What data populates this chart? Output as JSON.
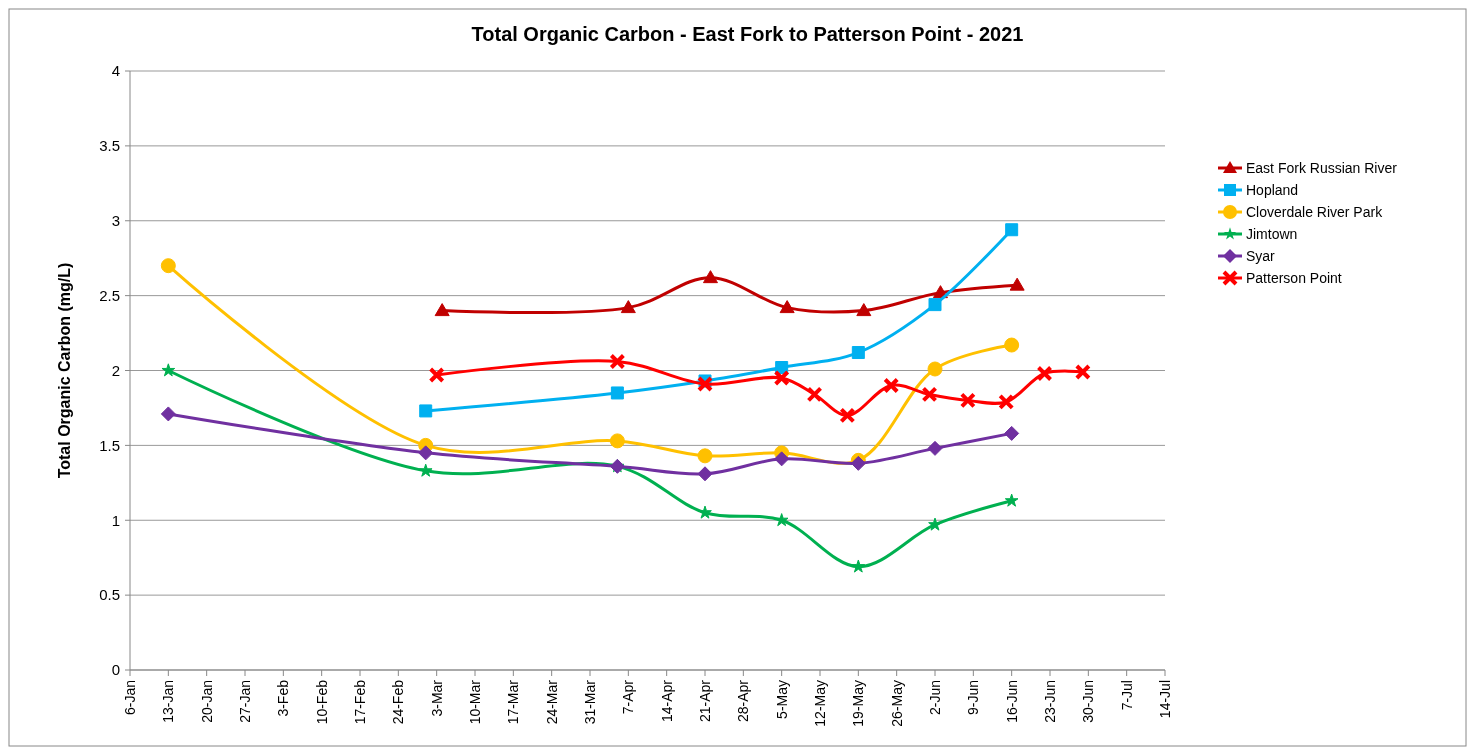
{
  "chart_data": {
    "type": "line",
    "title": "Total Organic Carbon - East Fork to Patterson Point - 2021",
    "ylabel": "Total Organic Carbon (mg/L)",
    "xlim": [
      "2021-01-06",
      "2021-07-14"
    ],
    "xticks": [
      {
        "value": "2021-01-06",
        "label": "6-Jan"
      },
      {
        "value": "2021-01-13",
        "label": "13-Jan"
      },
      {
        "value": "2021-01-20",
        "label": "20-Jan"
      },
      {
        "value": "2021-01-27",
        "label": "27-Jan"
      },
      {
        "value": "2021-02-03",
        "label": "3-Feb"
      },
      {
        "value": "2021-02-10",
        "label": "10-Feb"
      },
      {
        "value": "2021-02-17",
        "label": "17-Feb"
      },
      {
        "value": "2021-02-24",
        "label": "24-Feb"
      },
      {
        "value": "2021-03-03",
        "label": "3-Mar"
      },
      {
        "value": "2021-03-10",
        "label": "10-Mar"
      },
      {
        "value": "2021-03-17",
        "label": "17-Mar"
      },
      {
        "value": "2021-03-24",
        "label": "24-Mar"
      },
      {
        "value": "2021-03-31",
        "label": "31-Mar"
      },
      {
        "value": "2021-04-07",
        "label": "7-Apr"
      },
      {
        "value": "2021-04-14",
        "label": "14-Apr"
      },
      {
        "value": "2021-04-21",
        "label": "21-Apr"
      },
      {
        "value": "2021-04-28",
        "label": "28-Apr"
      },
      {
        "value": "2021-05-05",
        "label": "5-May"
      },
      {
        "value": "2021-05-12",
        "label": "12-May"
      },
      {
        "value": "2021-05-19",
        "label": "19-May"
      },
      {
        "value": "2021-05-26",
        "label": "26-May"
      },
      {
        "value": "2021-06-02",
        "label": "2-Jun"
      },
      {
        "value": "2021-06-09",
        "label": "9-Jun"
      },
      {
        "value": "2021-06-16",
        "label": "16-Jun"
      },
      {
        "value": "2021-06-23",
        "label": "23-Jun"
      },
      {
        "value": "2021-06-30",
        "label": "30-Jun"
      },
      {
        "value": "2021-07-07",
        "label": "7-Jul"
      },
      {
        "value": "2021-07-14",
        "label": "14-Jul"
      }
    ],
    "ylim": [
      0,
      4
    ],
    "yticks": [
      0,
      0.5,
      1,
      1.5,
      2,
      2.5,
      3,
      3.5,
      4
    ],
    "grid": "y",
    "legend": "right",
    "series": [
      {
        "name": "East Fork Russian River",
        "color": "#c00000",
        "marker": "triangle",
        "x": [
          "2021-03-04",
          "2021-04-07",
          "2021-04-22",
          "2021-05-06",
          "2021-05-20",
          "2021-06-03",
          "2021-06-17"
        ],
        "values": [
          2.4,
          2.42,
          2.62,
          2.42,
          2.4,
          2.52,
          2.57
        ]
      },
      {
        "name": "Hopland",
        "color": "#00b0f0",
        "marker": "square",
        "x": [
          "2021-03-01",
          "2021-04-05",
          "2021-04-21",
          "2021-05-05",
          "2021-05-19",
          "2021-06-02",
          "2021-06-16"
        ],
        "values": [
          1.73,
          1.85,
          1.93,
          2.02,
          2.12,
          2.44,
          2.94
        ]
      },
      {
        "name": "Cloverdale River Park",
        "color": "#ffc000",
        "marker": "circle",
        "x": [
          "2021-01-13",
          "2021-03-01",
          "2021-04-05",
          "2021-04-21",
          "2021-05-05",
          "2021-05-19",
          "2021-06-02",
          "2021-06-16"
        ],
        "values": [
          2.7,
          1.5,
          1.53,
          1.43,
          1.45,
          1.4,
          2.01,
          2.17
        ]
      },
      {
        "name": "Jimtown",
        "color": "#00b050",
        "marker": "star",
        "x": [
          "2021-01-13",
          "2021-03-01",
          "2021-04-05",
          "2021-04-21",
          "2021-05-05",
          "2021-05-19",
          "2021-06-02",
          "2021-06-16"
        ],
        "values": [
          2.0,
          1.33,
          1.36,
          1.05,
          1.0,
          0.69,
          0.97,
          1.13
        ]
      },
      {
        "name": "Syar",
        "color": "#7030a0",
        "marker": "diamond",
        "x": [
          "2021-01-13",
          "2021-03-01",
          "2021-04-05",
          "2021-04-21",
          "2021-05-05",
          "2021-05-19",
          "2021-06-02",
          "2021-06-16"
        ],
        "values": [
          1.71,
          1.45,
          1.36,
          1.31,
          1.41,
          1.38,
          1.48,
          1.58
        ]
      },
      {
        "name": "Patterson Point",
        "color": "#ff0000",
        "marker": "cross",
        "x": [
          "2021-03-03",
          "2021-04-05",
          "2021-04-21",
          "2021-05-05",
          "2021-05-11",
          "2021-05-17",
          "2021-05-25",
          "2021-06-01",
          "2021-06-08",
          "2021-06-15",
          "2021-06-22",
          "2021-06-29"
        ],
        "values": [
          1.97,
          2.06,
          1.91,
          1.95,
          1.84,
          1.7,
          1.9,
          1.84,
          1.8,
          1.79,
          1.98,
          1.99
        ]
      }
    ]
  }
}
